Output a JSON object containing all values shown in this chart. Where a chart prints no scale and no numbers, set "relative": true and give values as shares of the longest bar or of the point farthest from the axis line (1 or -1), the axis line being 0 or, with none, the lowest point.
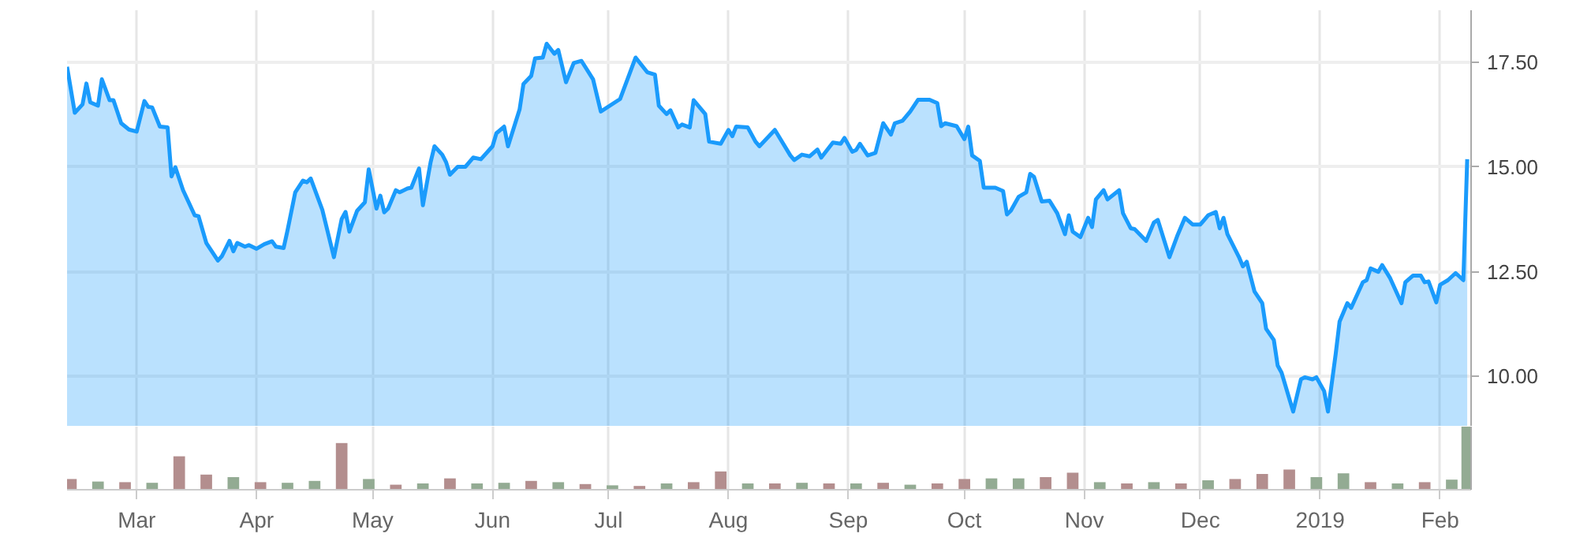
{
  "chart_data": [
    {
      "type": "area",
      "tick_labels": "y",
      "grid": true,
      "xlim": [
        "2018-02-11",
        "2019-02-09"
      ],
      "ylim": [
        8.8,
        18.75
      ],
      "xticks": [
        {
          "value": "2018-03-01",
          "label": null
        },
        {
          "value": "2018-04-01",
          "label": null
        },
        {
          "value": "2018-05-01",
          "label": null
        },
        {
          "value": "2018-06-01",
          "label": null
        },
        {
          "value": "2018-07-01",
          "label": null
        },
        {
          "value": "2018-08-01",
          "label": null
        },
        {
          "value": "2018-09-01",
          "label": null
        },
        {
          "value": "2018-10-01",
          "label": null
        },
        {
          "value": "2018-11-01",
          "label": null
        },
        {
          "value": "2018-12-01",
          "label": null
        },
        {
          "value": "2019-01-01",
          "label": null
        },
        {
          "value": "2019-02-01",
          "label": null
        }
      ],
      "yticks": [
        {
          "value": 10,
          "label": "10.00"
        },
        {
          "value": 12.5,
          "label": "12.50"
        },
        {
          "value": 15,
          "label": "15.00"
        },
        {
          "value": 17.5,
          "label": "17.50"
        }
      ],
      "x": [
        "2018-02-11",
        "2018-02-13",
        "2018-02-15",
        "2018-02-16",
        "2018-02-17",
        "2018-02-19",
        "2018-02-20",
        "2018-02-22",
        "2018-02-23",
        "2018-02-25",
        "2018-02-27",
        "2018-03-01",
        "2018-03-03",
        "2018-03-04",
        "2018-03-05",
        "2018-03-07",
        "2018-03-09",
        "2018-03-10",
        "2018-03-11",
        "2018-03-13",
        "2018-03-16",
        "2018-03-17",
        "2018-03-19",
        "2018-03-22",
        "2018-03-23",
        "2018-03-25",
        "2018-03-26",
        "2018-03-27",
        "2018-03-29",
        "2018-03-30",
        "2018-04-01",
        "2018-04-03",
        "2018-04-05",
        "2018-04-06",
        "2018-04-08",
        "2018-04-09",
        "2018-04-11",
        "2018-04-13",
        "2018-04-14",
        "2018-04-15",
        "2018-04-18",
        "2018-04-21",
        "2018-04-23",
        "2018-04-24",
        "2018-04-25",
        "2018-04-27",
        "2018-04-29",
        "2018-04-30",
        "2018-05-02",
        "2018-05-03",
        "2018-05-04",
        "2018-05-05",
        "2018-05-07",
        "2018-05-08",
        "2018-05-10",
        "2018-05-11",
        "2018-05-13",
        "2018-05-14",
        "2018-05-16",
        "2018-05-17",
        "2018-05-19",
        "2018-05-20",
        "2018-05-21",
        "2018-05-23",
        "2018-05-25",
        "2018-05-27",
        "2018-05-29",
        "2018-06-01",
        "2018-06-02",
        "2018-06-04",
        "2018-06-05",
        "2018-06-08",
        "2018-06-09",
        "2018-06-11",
        "2018-06-12",
        "2018-06-14",
        "2018-06-15",
        "2018-06-17",
        "2018-06-18",
        "2018-06-20",
        "2018-06-22",
        "2018-06-24",
        "2018-06-27",
        "2018-06-29",
        "2018-07-04",
        "2018-07-08",
        "2018-07-11",
        "2018-07-13",
        "2018-07-14",
        "2018-07-16",
        "2018-07-17",
        "2018-07-19",
        "2018-07-20",
        "2018-07-22",
        "2018-07-23",
        "2018-07-26",
        "2018-07-27",
        "2018-07-30",
        "2018-08-01",
        "2018-08-02",
        "2018-08-03",
        "2018-08-06",
        "2018-08-08",
        "2018-08-09",
        "2018-08-13",
        "2018-08-17",
        "2018-08-18",
        "2018-08-20",
        "2018-08-22",
        "2018-08-24",
        "2018-08-25",
        "2018-08-28",
        "2018-08-30",
        "2018-08-31",
        "2018-09-02",
        "2018-09-03",
        "2018-09-04",
        "2018-09-06",
        "2018-09-08",
        "2018-09-10",
        "2018-09-12",
        "2018-09-13",
        "2018-09-15",
        "2018-09-17",
        "2018-09-19",
        "2018-09-22",
        "2018-09-24",
        "2018-09-25",
        "2018-09-26",
        "2018-09-29",
        "2018-10-01",
        "2018-10-02",
        "2018-10-03",
        "2018-10-05",
        "2018-10-06",
        "2018-10-09",
        "2018-10-11",
        "2018-10-12",
        "2018-10-13",
        "2018-10-15",
        "2018-10-17",
        "2018-10-18",
        "2018-10-19",
        "2018-10-21",
        "2018-10-23",
        "2018-10-25",
        "2018-10-27",
        "2018-10-28",
        "2018-10-29",
        "2018-10-31",
        "2018-11-02",
        "2018-11-03",
        "2018-11-04",
        "2018-11-06",
        "2018-11-07",
        "2018-11-10",
        "2018-11-11",
        "2018-11-13",
        "2018-11-14",
        "2018-11-17",
        "2018-11-19",
        "2018-11-20",
        "2018-11-23",
        "2018-11-25",
        "2018-11-27",
        "2018-11-29",
        "2018-12-01",
        "2018-12-03",
        "2018-12-05",
        "2018-12-06",
        "2018-12-07",
        "2018-12-08",
        "2018-12-11",
        "2018-12-12",
        "2018-12-13",
        "2018-12-15",
        "2018-12-17",
        "2018-12-18",
        "2018-12-20",
        "2018-12-21",
        "2018-12-22",
        "2018-12-25",
        "2018-12-27",
        "2018-12-28",
        "2018-12-30",
        "2018-12-31",
        "2019-01-02",
        "2019-01-03",
        "2019-01-05",
        "2019-01-06",
        "2019-01-08",
        "2019-01-09",
        "2019-01-12",
        "2019-01-13",
        "2019-01-14",
        "2019-01-16",
        "2019-01-17",
        "2019-01-19",
        "2019-01-22",
        "2019-01-23",
        "2019-01-25",
        "2019-01-27",
        "2019-01-28",
        "2019-01-29",
        "2019-01-31",
        "2019-02-01",
        "2019-02-03",
        "2019-02-05",
        "2019-02-07",
        "2019-02-08"
      ],
      "series": [
        {
          "color": "#1a9bfc",
          "values": [
            17.4,
            16.3,
            16.5,
            17.0,
            16.55,
            16.47,
            17.1,
            16.6,
            16.6,
            16.05,
            15.9,
            15.85,
            16.58,
            16.44,
            16.43,
            15.97,
            15.95,
            14.78,
            15.0,
            14.45,
            13.85,
            13.83,
            13.19,
            12.77,
            12.87,
            13.24,
            12.99,
            13.19,
            13.1,
            13.14,
            13.05,
            13.16,
            13.23,
            13.1,
            13.07,
            13.49,
            14.4,
            14.68,
            14.64,
            14.73,
            13.98,
            12.85,
            13.76,
            13.93,
            13.46,
            13.96,
            14.16,
            14.95,
            14.01,
            14.32,
            13.92,
            14.01,
            14.45,
            14.4,
            14.49,
            14.51,
            14.97,
            14.09,
            15.12,
            15.5,
            15.3,
            15.12,
            14.82,
            15.01,
            15.01,
            15.23,
            15.19,
            15.5,
            15.81,
            15.97,
            15.5,
            16.38,
            16.99,
            17.18,
            17.6,
            17.62,
            17.95,
            17.71,
            17.8,
            17.03,
            17.49,
            17.54,
            17.1,
            16.33,
            16.63,
            17.62,
            17.27,
            17.21,
            16.47,
            16.27,
            16.36,
            15.95,
            16.02,
            15.95,
            16.6,
            16.27,
            15.61,
            15.56,
            15.89,
            15.74,
            15.97,
            15.95,
            15.61,
            15.5,
            15.89,
            15.28,
            15.17,
            15.3,
            15.26,
            15.42,
            15.23,
            15.59,
            15.56,
            15.7,
            15.37,
            15.41,
            15.56,
            15.28,
            15.34,
            16.05,
            15.78,
            16.05,
            16.11,
            16.33,
            16.61,
            16.61,
            16.53,
            15.98,
            16.05,
            15.98,
            15.67,
            15.97,
            15.28,
            15.15,
            14.51,
            14.51,
            14.43,
            13.87,
            13.96,
            14.29,
            14.4,
            14.84,
            14.77,
            14.18,
            14.2,
            13.9,
            13.4,
            13.85,
            13.46,
            13.33,
            13.79,
            13.57,
            14.23,
            14.45,
            14.23,
            14.45,
            13.9,
            13.54,
            13.52,
            13.24,
            13.68,
            13.74,
            12.85,
            13.35,
            13.79,
            13.63,
            13.63,
            13.85,
            13.93,
            13.54,
            13.79,
            13.4,
            12.85,
            12.63,
            12.74,
            12.03,
            11.75,
            11.14,
            10.87,
            10.26,
            10.09,
            9.16,
            9.93,
            9.98,
            9.93,
            9.98,
            9.65,
            9.16,
            10.54,
            11.31,
            11.75,
            11.64,
            12.25,
            12.3,
            12.58,
            12.5,
            12.66,
            12.36,
            11.75,
            12.25,
            12.41,
            12.41,
            12.25,
            12.27,
            11.77,
            12.19,
            12.3,
            12.47,
            12.3,
            15.19
          ]
        }
      ]
    },
    {
      "type": "bar",
      "relative": true,
      "tick_labels": "x",
      "grid": "x",
      "xlim": [
        "2018-02-11",
        "2019-02-09"
      ],
      "xticks": [
        {
          "value": "2018-03-01",
          "label": "Mar"
        },
        {
          "value": "2018-04-01",
          "label": "Apr"
        },
        {
          "value": "2018-05-01",
          "label": "May"
        },
        {
          "value": "2018-06-01",
          "label": "Jun"
        },
        {
          "value": "2018-07-01",
          "label": "Jul"
        },
        {
          "value": "2018-08-01",
          "label": "Aug"
        },
        {
          "value": "2018-09-01",
          "label": "Sep"
        },
        {
          "value": "2018-10-01",
          "label": "Oct"
        },
        {
          "value": "2018-11-01",
          "label": "Nov"
        },
        {
          "value": "2018-12-01",
          "label": "Dec"
        },
        {
          "value": "2019-01-01",
          "label": "2019"
        },
        {
          "value": "2019-02-01",
          "label": "Feb"
        }
      ],
      "x": [
        "2018-02-12",
        "2018-02-19",
        "2018-02-26",
        "2018-03-05",
        "2018-03-12",
        "2018-03-19",
        "2018-03-26",
        "2018-04-02",
        "2018-04-09",
        "2018-04-16",
        "2018-04-23",
        "2018-04-30",
        "2018-05-07",
        "2018-05-14",
        "2018-05-21",
        "2018-05-28",
        "2018-06-04",
        "2018-06-11",
        "2018-06-18",
        "2018-06-25",
        "2018-07-02",
        "2018-07-09",
        "2018-07-16",
        "2018-07-23",
        "2018-07-30",
        "2018-08-06",
        "2018-08-13",
        "2018-08-20",
        "2018-08-27",
        "2018-09-03",
        "2018-09-10",
        "2018-09-17",
        "2018-09-24",
        "2018-10-01",
        "2018-10-08",
        "2018-10-15",
        "2018-10-22",
        "2018-10-29",
        "2018-11-05",
        "2018-11-12",
        "2018-11-19",
        "2018-11-26",
        "2018-12-03",
        "2018-12-10",
        "2018-12-17",
        "2018-12-24",
        "2018-12-31",
        "2019-01-07",
        "2019-01-14",
        "2019-01-21",
        "2019-01-28",
        "2019-02-04",
        "2019-02-08"
      ],
      "values": [
        0.17,
        0.13,
        0.12,
        0.11,
        0.53,
        0.24,
        0.2,
        0.12,
        0.11,
        0.14,
        0.74,
        0.17,
        0.08,
        0.1,
        0.18,
        0.1,
        0.11,
        0.14,
        0.12,
        0.09,
        0.07,
        0.06,
        0.1,
        0.12,
        0.29,
        0.1,
        0.1,
        0.11,
        0.1,
        0.1,
        0.11,
        0.08,
        0.1,
        0.17,
        0.18,
        0.18,
        0.2,
        0.27,
        0.12,
        0.1,
        0.12,
        0.1,
        0.15,
        0.17,
        0.25,
        0.32,
        0.2,
        0.26,
        0.12,
        0.1,
        0.12,
        0.16,
        1.0
      ],
      "colors": [
        "#b38e8e",
        "#93ab93",
        "#b38e8e",
        "#93ab93",
        "#b38e8e",
        "#b38e8e",
        "#93ab93",
        "#b38e8e",
        "#93ab93",
        "#93ab93",
        "#b38e8e",
        "#93ab93",
        "#b38e8e",
        "#93ab93",
        "#b38e8e",
        "#93ab93",
        "#93ab93",
        "#b38e8e",
        "#93ab93",
        "#b38e8e",
        "#93ab93",
        "#b38e8e",
        "#93ab93",
        "#b38e8e",
        "#b38e8e",
        "#93ab93",
        "#b38e8e",
        "#93ab93",
        "#b38e8e",
        "#93ab93",
        "#b38e8e",
        "#93ab93",
        "#b38e8e",
        "#b38e8e",
        "#93ab93",
        "#93ab93",
        "#b38e8e",
        "#b38e8e",
        "#93ab93",
        "#b38e8e",
        "#93ab93",
        "#b38e8e",
        "#93ab93",
        "#b38e8e",
        "#b38e8e",
        "#b38e8e",
        "#93ab93",
        "#93ab93",
        "#b38e8e",
        "#93ab93",
        "#b38e8e",
        "#93ab93",
        "#93ab93"
      ]
    }
  ]
}
